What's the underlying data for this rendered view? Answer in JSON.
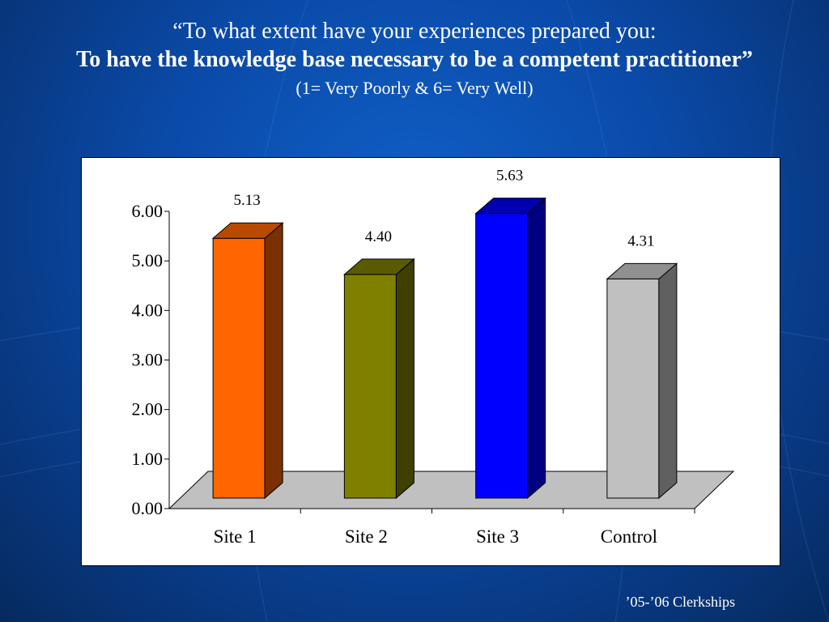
{
  "slide": {
    "title_line1": "“To what extent have your experiences prepared you:",
    "title_line2": "To have the knowledge base necessary to be a competent practitioner”",
    "title_line3": "(1= Very Poorly & 6= Very Well)",
    "footer": "’05-’06 Clerkships"
  },
  "chart_data": {
    "type": "bar",
    "categories": [
      "Site 1",
      "Site 2",
      "Site 3",
      "Control"
    ],
    "values": [
      5.13,
      4.4,
      5.63,
      4.31
    ],
    "data_labels": [
      "5.13",
      "4.40",
      "5.63",
      "4.31"
    ],
    "y_tick_labels": [
      "0.00",
      "1.00",
      "2.00",
      "3.00",
      "4.00",
      "5.00",
      "6.00"
    ],
    "ylim": [
      0,
      6
    ],
    "title": "",
    "xlabel": "",
    "ylabel": "",
    "grid": false,
    "legend": "none",
    "style": "3d-column",
    "colors": {
      "bars": [
        "#ff6600",
        "#808000",
        "#0000ff",
        "#c0c0c0"
      ],
      "bar_sides": [
        "#7a3000",
        "#3f3f00",
        "#000080",
        "#606060"
      ],
      "bar_tops": [
        "#b84a00",
        "#5a5a00",
        "#0000b0",
        "#909090"
      ],
      "floor": "#c0c0c0"
    }
  }
}
